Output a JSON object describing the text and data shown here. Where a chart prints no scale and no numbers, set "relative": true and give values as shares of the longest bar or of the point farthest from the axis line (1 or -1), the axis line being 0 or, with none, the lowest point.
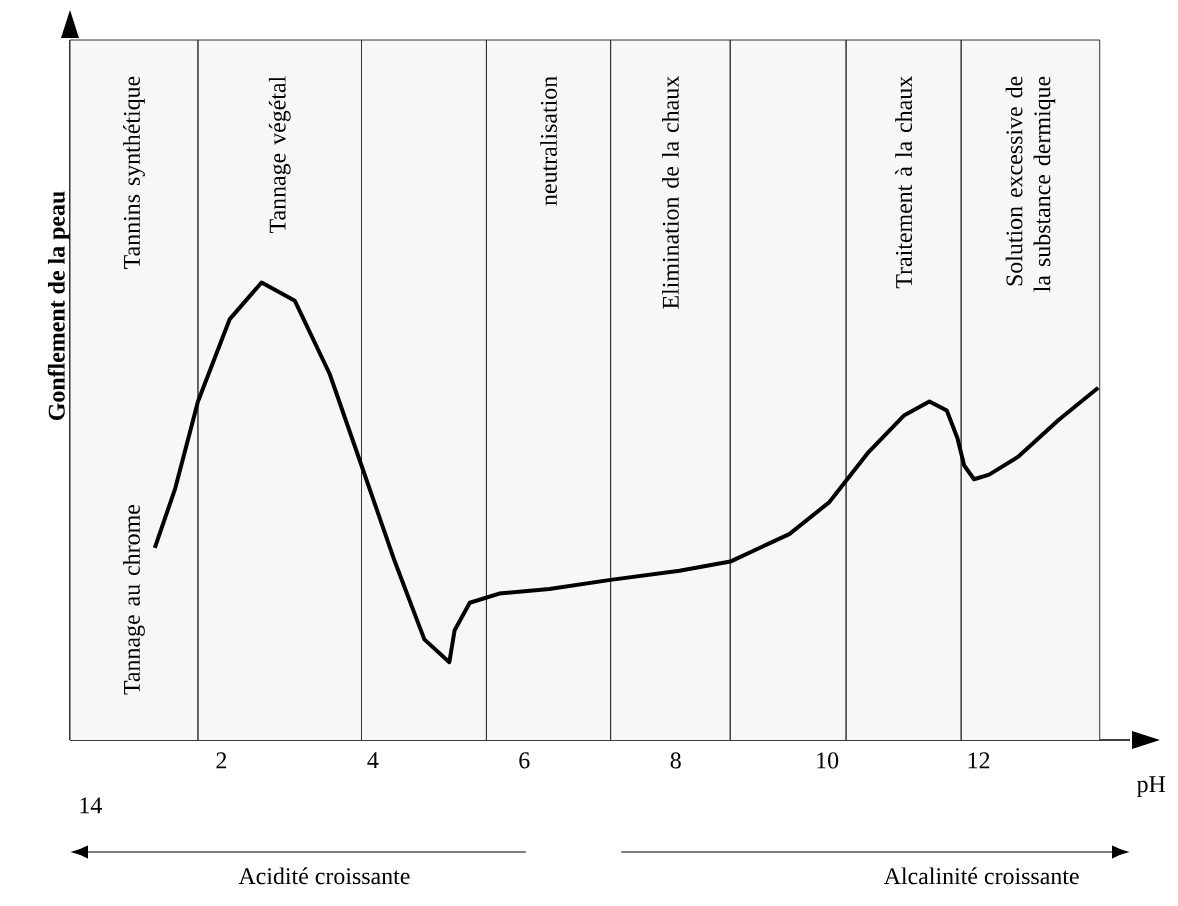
{
  "chart_data": {
    "type": "line",
    "relative": true,
    "xlabel": "pH",
    "ylabel": "Gonflement de la peau",
    "color": "#000000",
    "x": [
      1.12,
      1.39,
      1.69,
      2.11,
      2.53,
      2.97,
      3.43,
      3.85,
      4.29,
      4.68,
      5.01,
      5.08,
      5.28,
      5.67,
      6.33,
      7.14,
      8.05,
      8.72,
      9.5,
      10.03,
      10.55,
      11.02,
      11.35,
      11.58,
      11.72,
      11.81,
      11.94,
      12.14,
      12.53,
      13.06,
      13.58
    ],
    "values": [
      0.42,
      0.55,
      0.74,
      0.92,
      1.0,
      0.96,
      0.8,
      0.6,
      0.39,
      0.22,
      0.17,
      0.24,
      0.3,
      0.32,
      0.33,
      0.35,
      0.37,
      0.39,
      0.45,
      0.52,
      0.63,
      0.71,
      0.74,
      0.72,
      0.66,
      0.6,
      0.57,
      0.58,
      0.62,
      0.7,
      0.77
    ],
    "xlim": [
      0,
      14
    ],
    "xticks": [
      2,
      4,
      6,
      8,
      10,
      12
    ],
    "bands": [
      {
        "axis": "x",
        "from": 0,
        "to": 1.69,
        "label": "Tannage au chrome",
        "color": "#f7f7f7"
      },
      {
        "axis": "x",
        "from": 1.69,
        "to": 3.85,
        "label": "Tannage végétal",
        "color": "#f7f7f7"
      },
      {
        "axis": "x",
        "from": 3.85,
        "to": 5.5,
        "color": "#f7f7f7"
      },
      {
        "axis": "x",
        "from": 5.5,
        "to": 7.14,
        "label": "neutralisation",
        "color": "#f7f7f7"
      },
      {
        "axis": "x",
        "from": 7.14,
        "to": 8.72,
        "label": "Elimination de la chaux",
        "color": "#f7f7f7"
      },
      {
        "axis": "x",
        "from": 8.72,
        "to": 10.25,
        "color": "#f7f7f7"
      },
      {
        "axis": "x",
        "from": 10.25,
        "to": 11.77,
        "label": "Traitement à la chaux",
        "color": "#f7f7f7"
      },
      {
        "axis": "x",
        "from": 11.77,
        "to": 13.6,
        "label": "Solution excessive de la substance dermique",
        "color": "#f7f7f7"
      }
    ],
    "annotations": [
      "Tannins synthétique",
      "14",
      "Acidité croissante",
      "Alcalinité croissante"
    ]
  }
}
